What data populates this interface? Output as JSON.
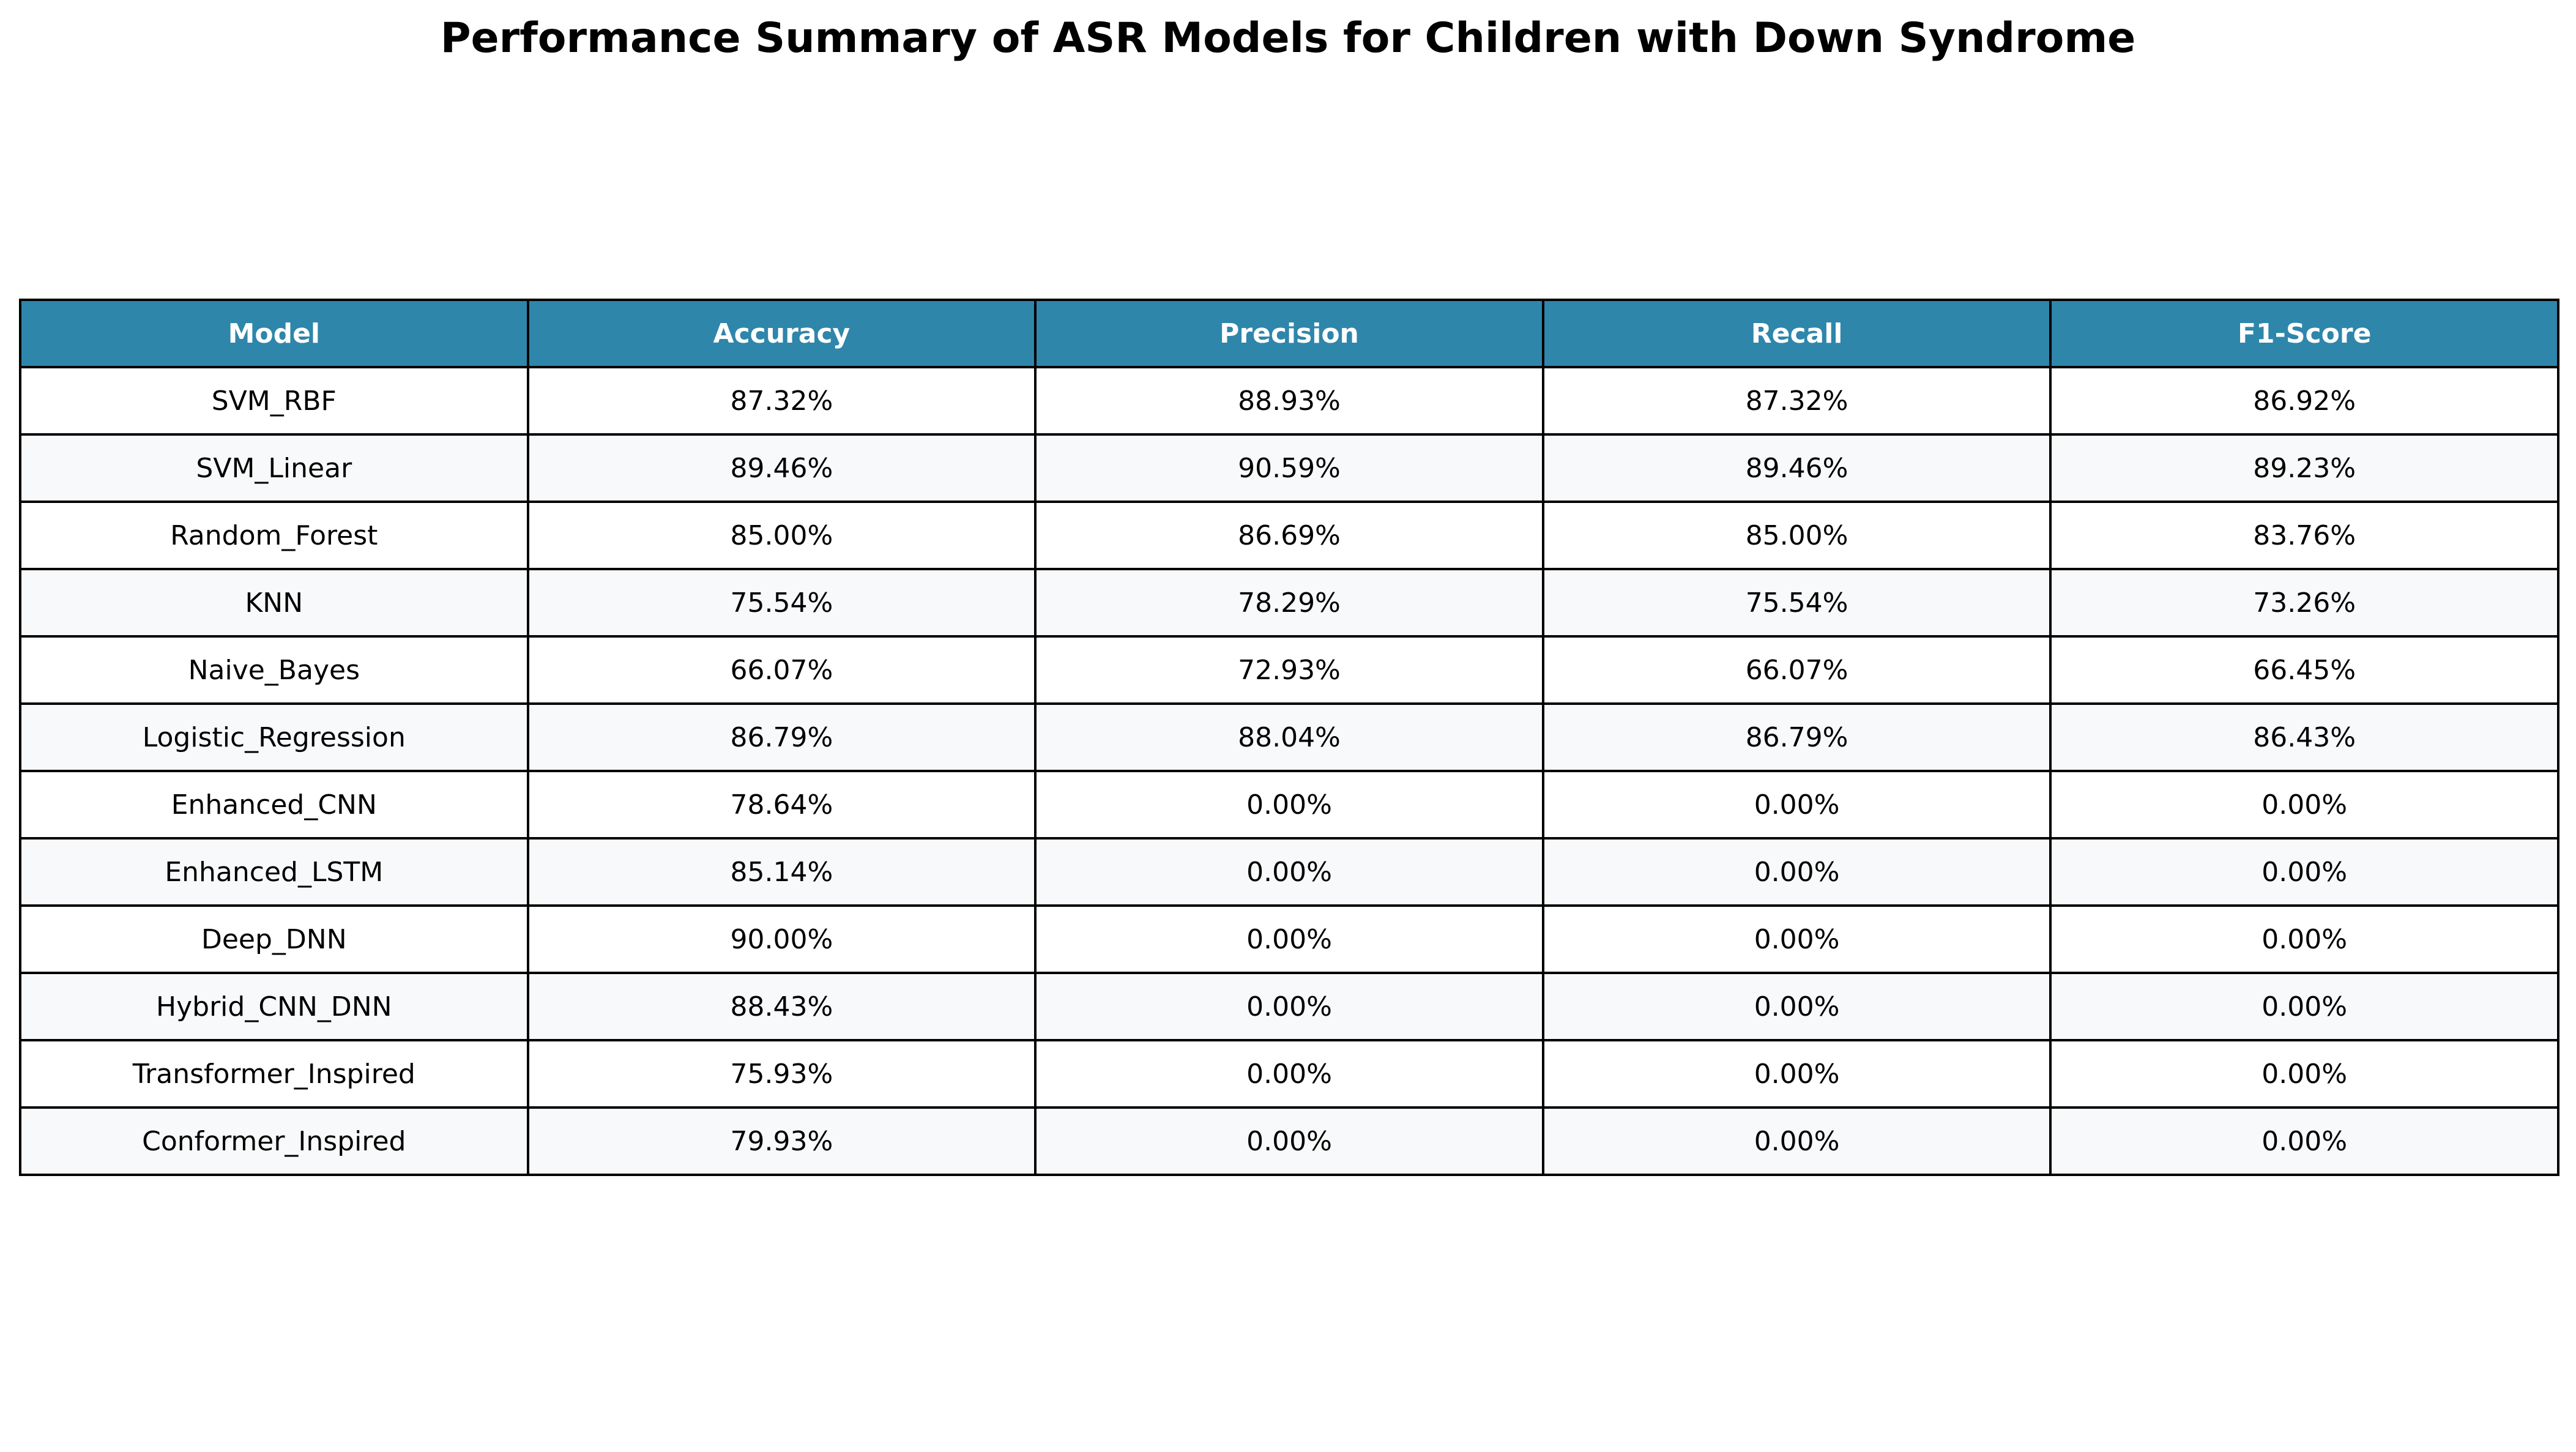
{
  "colors": {
    "header_bg": "#2e86ab",
    "header_text": "#ffffff",
    "row_odd": "#ffffff",
    "row_even": "#f8f9fa",
    "border": "#000000"
  },
  "chart_data": {
    "type": "table",
    "title": "Performance Summary of ASR Models for Children with Down Syndrome",
    "columns": [
      "Model",
      "Accuracy",
      "Precision",
      "Recall",
      "F1-Score"
    ],
    "rows": [
      [
        "SVM_RBF",
        "87.32%",
        "88.93%",
        "87.32%",
        "86.92%"
      ],
      [
        "SVM_Linear",
        "89.46%",
        "90.59%",
        "89.46%",
        "89.23%"
      ],
      [
        "Random_Forest",
        "85.00%",
        "86.69%",
        "85.00%",
        "83.76%"
      ],
      [
        "KNN",
        "75.54%",
        "78.29%",
        "75.54%",
        "73.26%"
      ],
      [
        "Naive_Bayes",
        "66.07%",
        "72.93%",
        "66.07%",
        "66.45%"
      ],
      [
        "Logistic_Regression",
        "86.79%",
        "88.04%",
        "86.79%",
        "86.43%"
      ],
      [
        "Enhanced_CNN",
        "78.64%",
        "0.00%",
        "0.00%",
        "0.00%"
      ],
      [
        "Enhanced_LSTM",
        "85.14%",
        "0.00%",
        "0.00%",
        "0.00%"
      ],
      [
        "Deep_DNN",
        "90.00%",
        "0.00%",
        "0.00%",
        "0.00%"
      ],
      [
        "Hybrid_CNN_DNN",
        "88.43%",
        "0.00%",
        "0.00%",
        "0.00%"
      ],
      [
        "Transformer_Inspired",
        "75.93%",
        "0.00%",
        "0.00%",
        "0.00%"
      ],
      [
        "Conformer_Inspired",
        "79.93%",
        "0.00%",
        "0.00%",
        "0.00%"
      ]
    ]
  }
}
